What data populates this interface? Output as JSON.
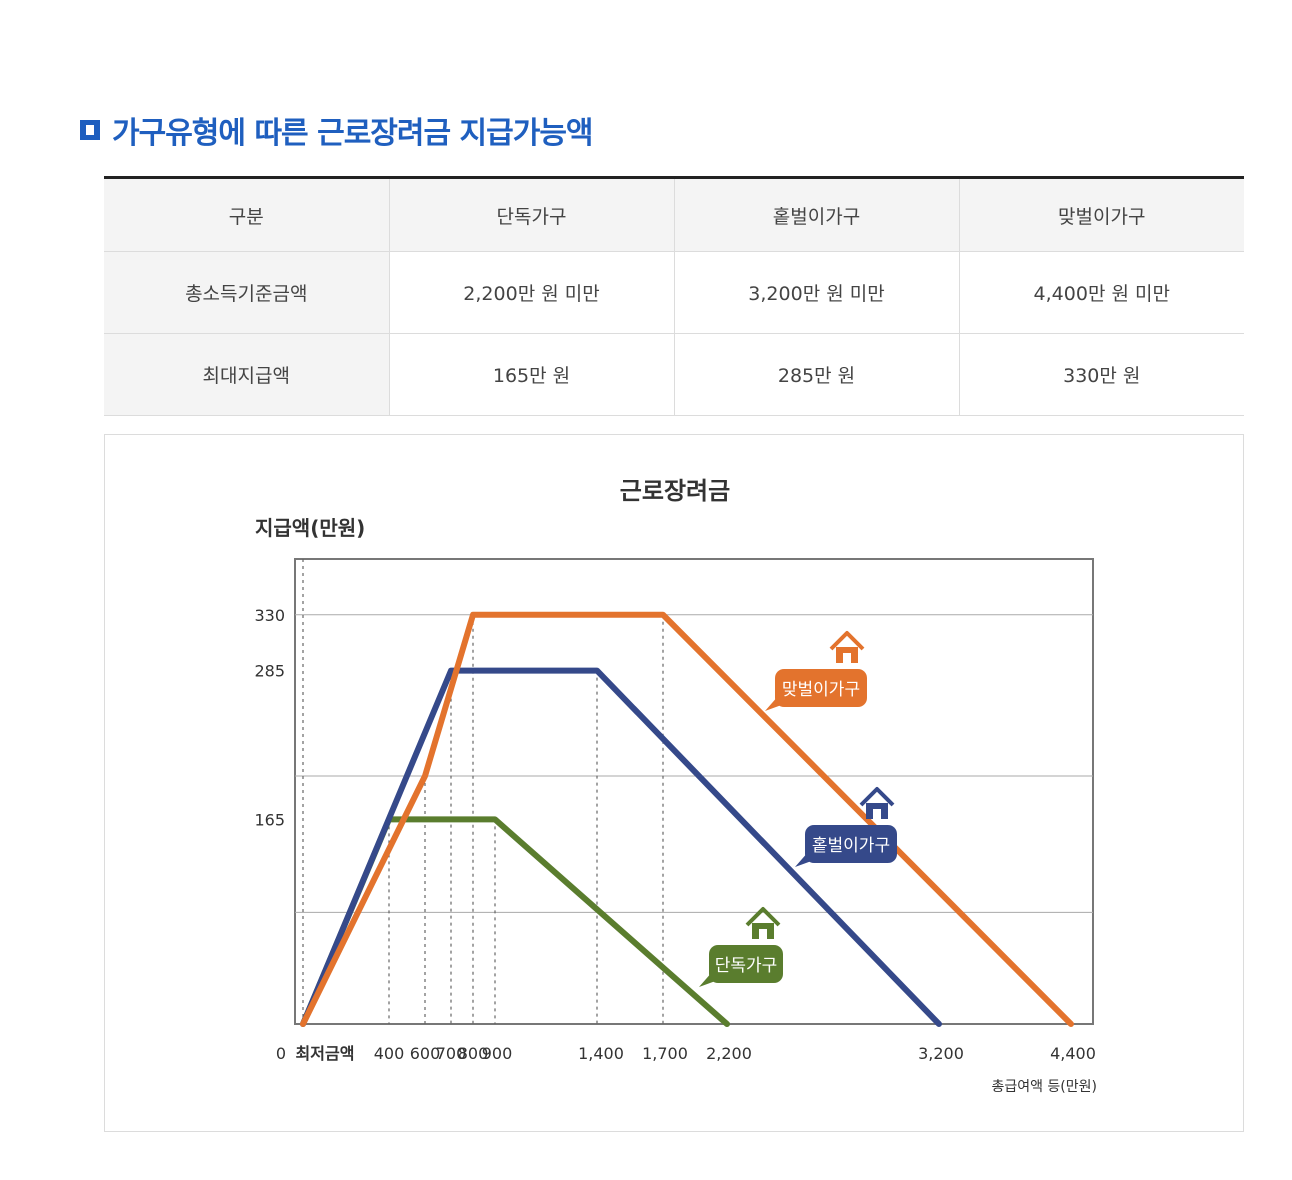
{
  "section": {
    "title": "가구유형에 따른 근로장려금 지급가능액"
  },
  "table": {
    "headers": [
      "구분",
      "단독가구",
      "홑벌이가구",
      "맞벌이가구"
    ],
    "rows": [
      {
        "label": "총소득기준금액",
        "values": [
          "2,200만 원 미만",
          "3,200만 원 미만",
          "4,400만 원 미만"
        ]
      },
      {
        "label": "최대지급액",
        "values": [
          "165만 원",
          "285만 원",
          "330만 원"
        ]
      }
    ]
  },
  "chart_data": {
    "type": "line",
    "title": "근로장려금",
    "ylabel": "지급액(만원)",
    "xlabel": "총급여액 등(만원)",
    "ylim": [
      0,
      375
    ],
    "y_ticks": [
      165,
      285,
      330
    ],
    "x_ticks": [
      "0",
      "최저금액",
      "400",
      "600",
      "700",
      "800",
      "900",
      "1,400",
      "1,700",
      "2,200",
      "3,200",
      "4,400"
    ],
    "series": [
      {
        "name": "단독가구",
        "color": "#5a7d2e",
        "icon": "house-icon",
        "x": [
          0,
          400,
          900,
          2200
        ],
        "y": [
          0,
          165,
          165,
          0
        ]
      },
      {
        "name": "홑벌이가구",
        "color": "#35498a",
        "icon": "house-icon",
        "x": [
          0,
          700,
          1400,
          3200
        ],
        "y": [
          0,
          285,
          285,
          0
        ]
      },
      {
        "name": "맞벌이가구",
        "color": "#e3732d",
        "icon": "house-icon",
        "x": [
          0,
          600,
          800,
          1700,
          4400
        ],
        "y": [
          0,
          200,
          330,
          330,
          0
        ]
      }
    ]
  }
}
